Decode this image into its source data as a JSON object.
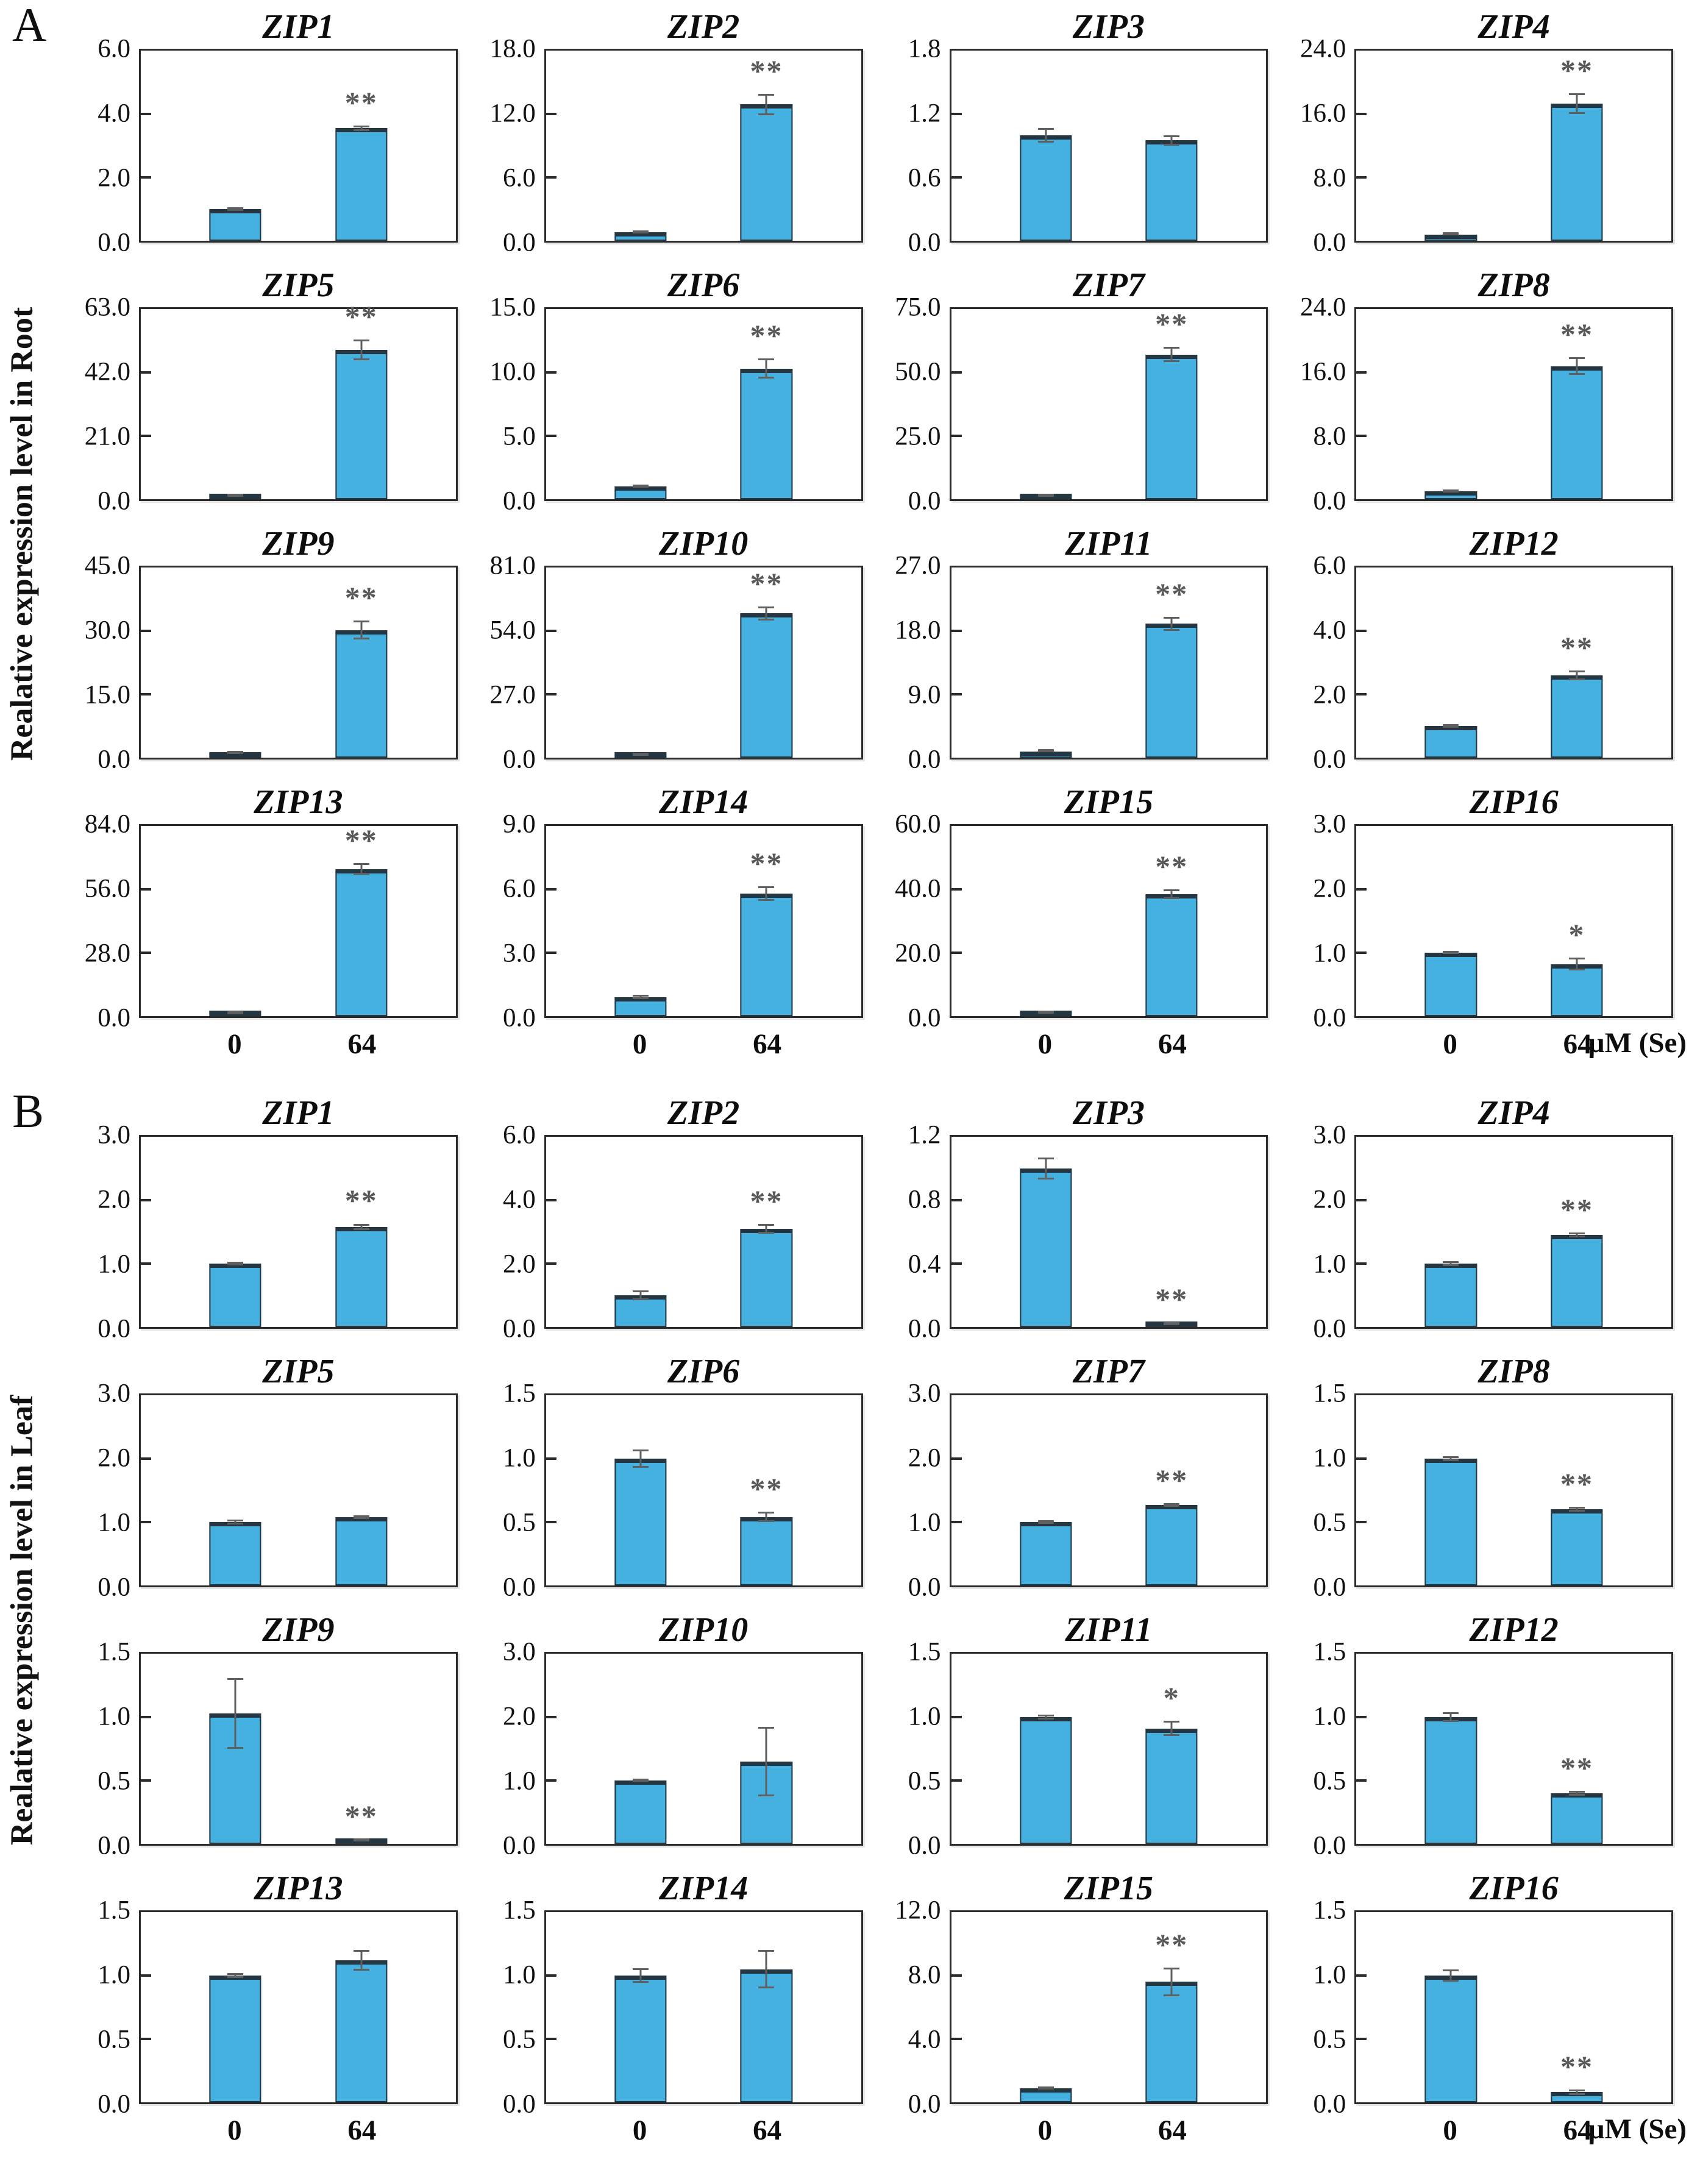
{
  "chart_data": {
    "type": "bar",
    "categories": [
      "0",
      "64"
    ],
    "x_unit": "µM (Se)",
    "bar_color": "#44b1e0",
    "grid": false,
    "legend": "none",
    "panels": [
      {
        "label": "A",
        "axis_label": "Realative expression level in Root",
        "charts": [
          {
            "title": "ZIP1",
            "ylim": [
              0,
              6
            ],
            "yticks": [
              0,
              2,
              4,
              6
            ],
            "values": [
              1.0,
              3.55
            ],
            "errors": [
              0.05,
              0.08
            ],
            "sig": [
              "",
              "**"
            ]
          },
          {
            "title": "ZIP2",
            "ylim": [
              0,
              18
            ],
            "yticks": [
              0,
              6,
              12,
              18
            ],
            "values": [
              0.8,
              12.9
            ],
            "errors": [
              0.08,
              1.0
            ],
            "sig": [
              "",
              "**"
            ]
          },
          {
            "title": "ZIP3",
            "ylim": [
              0,
              1.8
            ],
            "yticks": [
              0,
              0.6,
              1.2,
              1.8
            ],
            "values": [
              1.0,
              0.95
            ],
            "errors": [
              0.07,
              0.05
            ],
            "sig": [
              "",
              ""
            ]
          },
          {
            "title": "ZIP4",
            "ylim": [
              0,
              24
            ],
            "yticks": [
              0,
              8,
              16,
              24
            ],
            "values": [
              0.8,
              17.3
            ],
            "errors": [
              0.1,
              1.3
            ],
            "sig": [
              "",
              "**"
            ]
          },
          {
            "title": "ZIP5",
            "ylim": [
              0,
              63
            ],
            "yticks": [
              0,
              21,
              42,
              63
            ],
            "values": [
              1.0,
              49.5
            ],
            "errors": [
              0.1,
              3.5
            ],
            "sig": [
              "",
              "**"
            ]
          },
          {
            "title": "ZIP6",
            "ylim": [
              0,
              15
            ],
            "yticks": [
              0,
              5,
              10,
              15
            ],
            "values": [
              1.0,
              10.3
            ],
            "errors": [
              0.1,
              0.8
            ],
            "sig": [
              "",
              "**"
            ]
          },
          {
            "title": "ZIP7",
            "ylim": [
              0,
              75
            ],
            "yticks": [
              0,
              25,
              50,
              75
            ],
            "values": [
              1.0,
              57.0
            ],
            "errors": [
              0.1,
              3.0
            ],
            "sig": [
              "",
              "**"
            ]
          },
          {
            "title": "ZIP8",
            "ylim": [
              0,
              24
            ],
            "yticks": [
              0,
              8,
              16,
              24
            ],
            "values": [
              1.0,
              16.8
            ],
            "errors": [
              0.15,
              1.1
            ],
            "sig": [
              "",
              "**"
            ]
          },
          {
            "title": "ZIP9",
            "ylim": [
              0,
              45
            ],
            "yticks": [
              0,
              15,
              30,
              45
            ],
            "values": [
              1.0,
              30.2
            ],
            "errors": [
              0.1,
              2.2
            ],
            "sig": [
              "",
              "**"
            ]
          },
          {
            "title": "ZIP10",
            "ylim": [
              0,
              81
            ],
            "yticks": [
              0,
              27,
              54,
              81
            ],
            "values": [
              0.8,
              61.5
            ],
            "errors": [
              0.1,
              3.0
            ],
            "sig": [
              "",
              "**"
            ]
          },
          {
            "title": "ZIP11",
            "ylim": [
              0,
              27
            ],
            "yticks": [
              0,
              9,
              18,
              27
            ],
            "values": [
              0.9,
              19.0
            ],
            "errors": [
              0.1,
              1.0
            ],
            "sig": [
              "",
              "**"
            ]
          },
          {
            "title": "ZIP12",
            "ylim": [
              0,
              6
            ],
            "yticks": [
              0,
              2,
              4,
              6
            ],
            "values": [
              1.0,
              2.6
            ],
            "errors": [
              0.05,
              0.15
            ],
            "sig": [
              "",
              "**"
            ]
          },
          {
            "title": "ZIP13",
            "ylim": [
              0,
              84
            ],
            "yticks": [
              0,
              28,
              56,
              84
            ],
            "values": [
              1.0,
              65.0
            ],
            "errors": [
              0.3,
              2.5
            ],
            "sig": [
              "",
              "**"
            ]
          },
          {
            "title": "ZIP14",
            "ylim": [
              0,
              9
            ],
            "yticks": [
              0,
              3,
              6,
              9
            ],
            "values": [
              0.9,
              5.8
            ],
            "errors": [
              0.1,
              0.35
            ],
            "sig": [
              "",
              "**"
            ]
          },
          {
            "title": "ZIP15",
            "ylim": [
              0,
              60
            ],
            "yticks": [
              0,
              20,
              40,
              60
            ],
            "values": [
              1.0,
              38.5
            ],
            "errors": [
              0.2,
              1.5
            ],
            "sig": [
              "",
              "**"
            ]
          },
          {
            "title": "ZIP16",
            "ylim": [
              0,
              3
            ],
            "yticks": [
              0,
              1,
              2,
              3
            ],
            "values": [
              1.0,
              0.82
            ],
            "errors": [
              0.02,
              0.1
            ],
            "sig": [
              "",
              "*"
            ]
          }
        ]
      },
      {
        "label": "B",
        "axis_label": "Realative expression level in Leaf",
        "charts": [
          {
            "title": "ZIP1",
            "ylim": [
              0,
              3
            ],
            "yticks": [
              0,
              1,
              2,
              3
            ],
            "values": [
              1.0,
              1.58
            ],
            "errors": [
              0.03,
              0.05
            ],
            "sig": [
              "",
              "**"
            ]
          },
          {
            "title": "ZIP2",
            "ylim": [
              0,
              6
            ],
            "yticks": [
              0,
              2,
              4,
              6
            ],
            "values": [
              1.0,
              3.1
            ],
            "errors": [
              0.15,
              0.15
            ],
            "sig": [
              "",
              "**"
            ]
          },
          {
            "title": "ZIP3",
            "ylim": [
              0,
              1.2
            ],
            "yticks": [
              0,
              0.4,
              0.8,
              1.2
            ],
            "values": [
              1.0,
              0.02
            ],
            "errors": [
              0.07,
              0.01
            ],
            "sig": [
              "",
              "**"
            ]
          },
          {
            "title": "ZIP4",
            "ylim": [
              0,
              3
            ],
            "yticks": [
              0,
              1,
              2,
              3
            ],
            "values": [
              1.0,
              1.45
            ],
            "errors": [
              0.04,
              0.04
            ],
            "sig": [
              "",
              "**"
            ]
          },
          {
            "title": "ZIP5",
            "ylim": [
              0,
              3
            ],
            "yticks": [
              0,
              1,
              2,
              3
            ],
            "values": [
              1.0,
              1.08
            ],
            "errors": [
              0.04,
              0.03
            ],
            "sig": [
              "",
              ""
            ]
          },
          {
            "title": "ZIP6",
            "ylim": [
              0,
              1.5
            ],
            "yticks": [
              0,
              0.5,
              1,
              1.5
            ],
            "values": [
              1.0,
              0.54
            ],
            "errors": [
              0.07,
              0.04
            ],
            "sig": [
              "",
              "**"
            ]
          },
          {
            "title": "ZIP7",
            "ylim": [
              0,
              3
            ],
            "yticks": [
              0,
              1,
              2,
              3
            ],
            "values": [
              1.0,
              1.27
            ],
            "errors": [
              0.03,
              0.03
            ],
            "sig": [
              "",
              "**"
            ]
          },
          {
            "title": "ZIP8",
            "ylim": [
              0,
              1.5
            ],
            "yticks": [
              0,
              0.5,
              1,
              1.5
            ],
            "values": [
              1.0,
              0.6
            ],
            "errors": [
              0.02,
              0.02
            ],
            "sig": [
              "",
              "**"
            ]
          },
          {
            "title": "ZIP9",
            "ylim": [
              0,
              1.5
            ],
            "yticks": [
              0,
              0.5,
              1,
              1.5
            ],
            "values": [
              1.03,
              0.03
            ],
            "errors": [
              0.28,
              0.01
            ],
            "sig": [
              "",
              "**"
            ]
          },
          {
            "title": "ZIP10",
            "ylim": [
              0,
              3
            ],
            "yticks": [
              0,
              1,
              2,
              3
            ],
            "values": [
              1.0,
              1.3
            ],
            "errors": [
              0.02,
              0.55
            ],
            "sig": [
              "",
              ""
            ]
          },
          {
            "title": "ZIP11",
            "ylim": [
              0,
              1.5
            ],
            "yticks": [
              0,
              0.5,
              1,
              1.5
            ],
            "values": [
              1.0,
              0.91
            ],
            "errors": [
              0.02,
              0.06
            ],
            "sig": [
              "",
              "*"
            ]
          },
          {
            "title": "ZIP12",
            "ylim": [
              0,
              1.5
            ],
            "yticks": [
              0,
              0.5,
              1,
              1.5
            ],
            "values": [
              1.0,
              0.4
            ],
            "errors": [
              0.04,
              0.02
            ],
            "sig": [
              "",
              "**"
            ]
          },
          {
            "title": "ZIP13",
            "ylim": [
              0,
              1.5
            ],
            "yticks": [
              0,
              0.5,
              1,
              1.5
            ],
            "values": [
              1.0,
              1.12
            ],
            "errors": [
              0.02,
              0.08
            ],
            "sig": [
              "",
              ""
            ]
          },
          {
            "title": "ZIP14",
            "ylim": [
              0,
              1.5
            ],
            "yticks": [
              0,
              0.5,
              1,
              1.5
            ],
            "values": [
              1.0,
              1.05
            ],
            "errors": [
              0.06,
              0.15
            ],
            "sig": [
              "",
              ""
            ]
          },
          {
            "title": "ZIP15",
            "ylim": [
              0,
              12
            ],
            "yticks": [
              0,
              4,
              8,
              12
            ],
            "values": [
              0.9,
              7.6
            ],
            "errors": [
              0.1,
              0.9
            ],
            "sig": [
              "",
              "**"
            ]
          },
          {
            "title": "ZIP16",
            "ylim": [
              0,
              1.5
            ],
            "yticks": [
              0,
              0.5,
              1,
              1.5
            ],
            "values": [
              1.0,
              0.08
            ],
            "errors": [
              0.05,
              0.02
            ],
            "sig": [
              "",
              "**"
            ]
          }
        ]
      }
    ]
  }
}
